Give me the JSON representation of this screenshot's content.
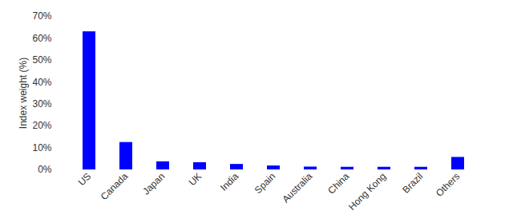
{
  "chart_data": {
    "type": "bar",
    "y_label": "Index weight (%)",
    "categories": [
      "US",
      "Canada",
      "Japan",
      "UK",
      "India",
      "Spain",
      "Australia",
      "China",
      "Hong Kong",
      "Brazil",
      "Others"
    ],
    "values": [
      63,
      12.5,
      3.7,
      3.3,
      2.5,
      1.8,
      1.3,
      1.2,
      1.2,
      1.2,
      5.7
    ],
    "color": "#0000ff",
    "ylim": [
      0,
      70
    ],
    "yticks": [
      {
        "value": 0,
        "label": "0%"
      },
      {
        "value": 10,
        "label": "10%"
      },
      {
        "value": 20,
        "label": "20%"
      },
      {
        "value": 30,
        "label": "30%"
      },
      {
        "value": 40,
        "label": "40%"
      },
      {
        "value": 50,
        "label": "50%"
      },
      {
        "value": 60,
        "label": "60%"
      },
      {
        "value": 70,
        "label": "70%"
      }
    ],
    "grid": false
  }
}
